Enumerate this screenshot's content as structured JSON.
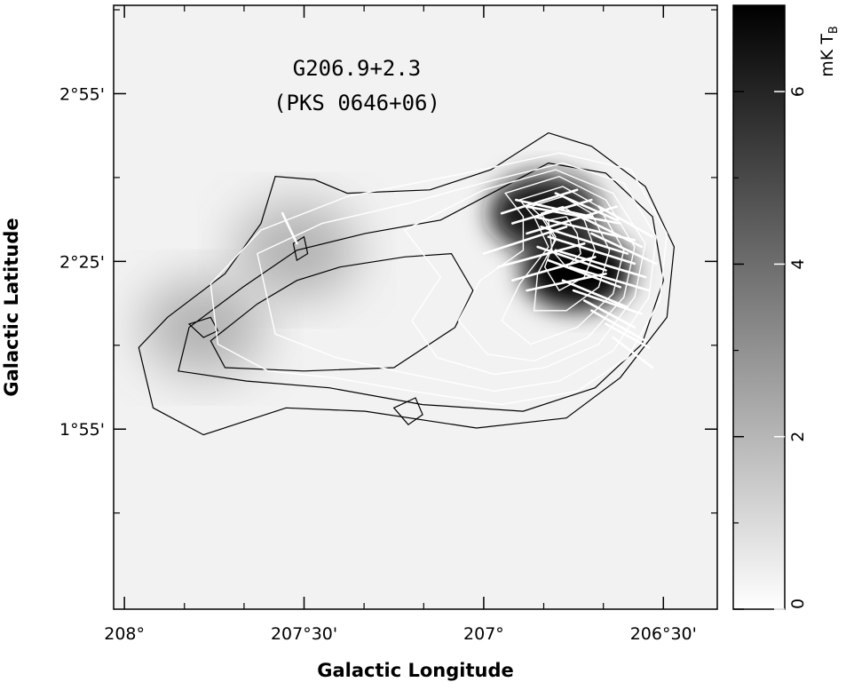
{
  "chart_data": {
    "type": "heatmap",
    "title": "G206.9+2.3",
    "subtitle": "(PKS 0646+06)",
    "xlabel": "Galactic Longitude",
    "ylabel": "Galactic Latitude",
    "xlim": [
      208.03,
      206.35
    ],
    "ylim": [
      1.38,
      3.18
    ],
    "x_ticks": [
      {
        "value": 208.0,
        "label": "208°"
      },
      {
        "value": 207.5,
        "label": "207°30'"
      },
      {
        "value": 207.0,
        "label": "207°"
      },
      {
        "value": 206.5,
        "label": "206°30'"
      }
    ],
    "y_ticks": [
      {
        "value": 1.9167,
        "label": "1°55'"
      },
      {
        "value": 2.4167,
        "label": "2°25'"
      },
      {
        "value": 2.9167,
        "label": "2°55'"
      }
    ],
    "colorbar": {
      "label": "mK T",
      "label_subscript": "B",
      "range": [
        0,
        7
      ],
      "ticks": [
        {
          "value": 0,
          "label": "0"
        },
        {
          "value": 2,
          "label": "2"
        },
        {
          "value": 4,
          "label": "4"
        },
        {
          "value": 6,
          "label": "6"
        }
      ],
      "colormap": "white-to-black"
    },
    "emission_peaks": [
      {
        "x": 206.74,
        "y": 2.39,
        "value": 7
      },
      {
        "x": 206.83,
        "y": 2.56,
        "value": 6.5
      },
      {
        "x": 207.78,
        "y": 2.22,
        "value": 2.5
      },
      {
        "x": 207.52,
        "y": 2.45,
        "value": 2.5
      }
    ],
    "contours_white": [
      {
        "level": 1,
        "points": [
          [
            207.76,
            2.35
          ],
          [
            207.62,
            2.51
          ],
          [
            207.38,
            2.61
          ],
          [
            207.05,
            2.68
          ],
          [
            206.79,
            2.74
          ],
          [
            206.59,
            2.69
          ],
          [
            206.49,
            2.5
          ],
          [
            206.51,
            2.3
          ],
          [
            206.6,
            2.13
          ],
          [
            206.74,
            2.03
          ],
          [
            206.95,
            1.99
          ],
          [
            207.2,
            2.03
          ],
          [
            207.42,
            2.07
          ],
          [
            207.6,
            2.09
          ],
          [
            207.74,
            2.17
          ]
        ]
      },
      {
        "level": 2,
        "points": [
          [
            207.63,
            2.44
          ],
          [
            207.45,
            2.53
          ],
          [
            207.21,
            2.59
          ],
          [
            206.97,
            2.66
          ],
          [
            206.78,
            2.71
          ],
          [
            206.61,
            2.65
          ],
          [
            206.52,
            2.49
          ],
          [
            206.54,
            2.31
          ],
          [
            206.64,
            2.15
          ],
          [
            206.79,
            2.06
          ],
          [
            206.97,
            2.03
          ],
          [
            207.2,
            2.08
          ],
          [
            207.41,
            2.13
          ],
          [
            207.58,
            2.2
          ]
        ]
      },
      {
        "level": 3,
        "points": [
          [
            207.0,
            2.63
          ],
          [
            206.8,
            2.69
          ],
          [
            206.64,
            2.62
          ],
          [
            206.55,
            2.47
          ],
          [
            206.58,
            2.31
          ],
          [
            206.68,
            2.17
          ],
          [
            206.83,
            2.1
          ],
          [
            206.97,
            2.08
          ],
          [
            207.13,
            2.13
          ],
          [
            207.2,
            2.24
          ],
          [
            207.12,
            2.37
          ],
          [
            207.22,
            2.51
          ]
        ]
      },
      {
        "level": 4,
        "points": [
          [
            206.94,
            2.62
          ],
          [
            206.79,
            2.67
          ],
          [
            206.66,
            2.6
          ],
          [
            206.58,
            2.46
          ],
          [
            206.61,
            2.31
          ],
          [
            206.71,
            2.19
          ],
          [
            206.86,
            2.12
          ],
          [
            206.99,
            2.14
          ],
          [
            207.07,
            2.24
          ],
          [
            207.01,
            2.36
          ],
          [
            206.89,
            2.45
          ],
          [
            206.89,
            2.55
          ]
        ]
      },
      {
        "level": 5,
        "points": [
          [
            206.9,
            2.6
          ],
          [
            206.78,
            2.64
          ],
          [
            206.68,
            2.58
          ],
          [
            206.61,
            2.45
          ],
          [
            206.64,
            2.32
          ],
          [
            206.74,
            2.22
          ],
          [
            206.87,
            2.17
          ],
          [
            206.95,
            2.24
          ],
          [
            206.9,
            2.35
          ],
          [
            206.82,
            2.46
          ],
          [
            206.86,
            2.55
          ]
        ]
      },
      {
        "level": 6,
        "points": [
          [
            206.87,
            2.58
          ],
          [
            206.78,
            2.61
          ],
          [
            206.7,
            2.56
          ],
          [
            206.65,
            2.45
          ],
          [
            206.68,
            2.34
          ],
          [
            206.77,
            2.27
          ],
          [
            206.86,
            2.27
          ],
          [
            206.85,
            2.38
          ],
          [
            206.8,
            2.48
          ],
          [
            206.84,
            2.55
          ]
        ]
      },
      {
        "level": 7,
        "points": [
          [
            206.84,
            2.56
          ],
          [
            206.78,
            2.58
          ],
          [
            206.72,
            2.54
          ],
          [
            206.69,
            2.45
          ],
          [
            206.72,
            2.37
          ],
          [
            206.79,
            2.33
          ],
          [
            206.83,
            2.4
          ],
          [
            206.8,
            2.49
          ]
        ]
      },
      {
        "level": 8,
        "points": [
          [
            206.82,
            2.54
          ],
          [
            206.77,
            2.55
          ],
          [
            206.74,
            2.5
          ],
          [
            206.73,
            2.44
          ],
          [
            206.77,
            2.4
          ],
          [
            206.81,
            2.45
          ]
        ]
      }
    ],
    "contours_black": [
      {
        "level": 1,
        "points": [
          [
            207.88,
            2.25
          ],
          [
            207.72,
            2.38
          ],
          [
            207.62,
            2.53
          ],
          [
            207.58,
            2.67
          ],
          [
            207.47,
            2.66
          ],
          [
            207.38,
            2.62
          ],
          [
            207.15,
            2.63
          ],
          [
            206.98,
            2.69
          ],
          [
            206.82,
            2.8
          ],
          [
            206.7,
            2.76
          ],
          [
            206.55,
            2.64
          ],
          [
            206.47,
            2.46
          ],
          [
            206.49,
            2.25
          ],
          [
            206.62,
            2.07
          ],
          [
            206.77,
            1.95
          ],
          [
            207.02,
            1.92
          ],
          [
            207.33,
            1.97
          ],
          [
            207.55,
            1.98
          ],
          [
            207.78,
            1.9
          ],
          [
            207.92,
            1.98
          ],
          [
            207.96,
            2.16
          ]
        ]
      },
      {
        "level": 2,
        "points": [
          [
            207.82,
            2.22
          ],
          [
            207.67,
            2.34
          ],
          [
            207.52,
            2.45
          ],
          [
            207.33,
            2.5
          ],
          [
            207.12,
            2.54
          ],
          [
            206.96,
            2.63
          ],
          [
            206.82,
            2.71
          ],
          [
            206.66,
            2.68
          ],
          [
            206.53,
            2.55
          ],
          [
            206.5,
            2.36
          ],
          [
            206.56,
            2.17
          ],
          [
            206.69,
            2.04
          ],
          [
            206.89,
            1.97
          ],
          [
            207.17,
            1.99
          ],
          [
            207.43,
            2.04
          ],
          [
            207.66,
            2.06
          ],
          [
            207.85,
            2.09
          ]
        ]
      },
      {
        "level": 3,
        "points": [
          [
            207.76,
            2.18
          ],
          [
            207.63,
            2.29
          ],
          [
            207.52,
            2.36
          ],
          [
            207.4,
            2.4
          ],
          [
            207.22,
            2.43
          ],
          [
            207.09,
            2.44
          ],
          [
            207.03,
            2.33
          ],
          [
            207.08,
            2.22
          ],
          [
            207.25,
            2.1
          ],
          [
            207.5,
            2.09
          ],
          [
            207.72,
            2.1
          ]
        ]
      },
      {
        "level": 4,
        "points": [
          [
            207.82,
            2.23
          ],
          [
            207.76,
            2.25
          ],
          [
            207.74,
            2.21
          ],
          [
            207.78,
            2.19
          ]
        ]
      },
      {
        "level": 5,
        "points": [
          [
            207.53,
            2.47
          ],
          [
            207.5,
            2.49
          ],
          [
            207.49,
            2.44
          ],
          [
            207.52,
            2.42
          ]
        ]
      },
      {
        "level": 6,
        "points": [
          [
            207.25,
            1.98
          ],
          [
            207.19,
            2.01
          ],
          [
            207.17,
            1.96
          ],
          [
            207.21,
            1.93
          ]
        ]
      }
    ],
    "polarization_vectors": [
      [
        206.91,
        2.6,
        206.7,
        2.55
      ],
      [
        206.88,
        2.58,
        206.62,
        2.53
      ],
      [
        206.86,
        2.55,
        206.58,
        2.48
      ],
      [
        206.84,
        2.52,
        206.6,
        2.44
      ],
      [
        206.82,
        2.49,
        206.58,
        2.41
      ],
      [
        206.85,
        2.46,
        206.66,
        2.39
      ],
      [
        206.8,
        2.45,
        206.55,
        2.37
      ],
      [
        206.82,
        2.42,
        206.62,
        2.34
      ],
      [
        206.76,
        2.4,
        206.54,
        2.33
      ],
      [
        206.78,
        2.36,
        206.6,
        2.28
      ],
      [
        206.75,
        2.33,
        206.56,
        2.26
      ],
      [
        206.72,
        2.3,
        206.58,
        2.22
      ],
      [
        206.7,
        2.27,
        206.55,
        2.18
      ],
      [
        206.66,
        2.23,
        206.54,
        2.16
      ],
      [
        206.64,
        2.19,
        206.53,
        2.1
      ],
      [
        206.95,
        2.56,
        206.74,
        2.63
      ],
      [
        206.92,
        2.53,
        206.7,
        2.6
      ],
      [
        206.88,
        2.5,
        206.63,
        2.58
      ],
      [
        207.0,
        2.44,
        206.77,
        2.52
      ],
      [
        206.96,
        2.4,
        206.72,
        2.47
      ],
      [
        206.92,
        2.36,
        206.69,
        2.43
      ],
      [
        206.88,
        2.33,
        206.66,
        2.38
      ],
      [
        207.52,
        2.47,
        207.56,
        2.56
      ],
      [
        206.7,
        2.5,
        206.52,
        2.41
      ],
      [
        206.73,
        2.55,
        206.56,
        2.46
      ],
      [
        206.68,
        2.58,
        206.53,
        2.49
      ],
      [
        206.8,
        2.62,
        206.63,
        2.54
      ]
    ]
  }
}
